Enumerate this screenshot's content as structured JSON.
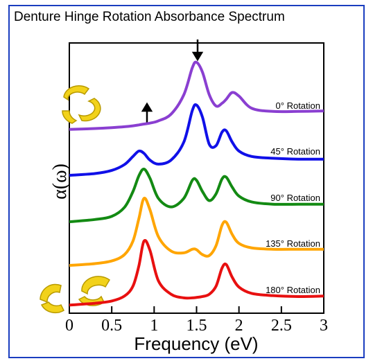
{
  "chart_data": {
    "type": "line",
    "title": "Denture Hinge Rotation Absorbance Spectrum",
    "x_label": "Frequency (eV)",
    "y_label": "α(ω)",
    "x": [
      0,
      0.3,
      0.5,
      0.65,
      0.75,
      0.82,
      0.88,
      0.95,
      1.05,
      1.2,
      1.35,
      1.45,
      1.5,
      1.57,
      1.65,
      1.73,
      1.8,
      1.85,
      1.92,
      2.0,
      2.15,
      2.4,
      2.7,
      3.0
    ],
    "xlim": [
      0,
      3
    ],
    "xticks": [
      0,
      0.5,
      1,
      1.5,
      2,
      2.5,
      3
    ],
    "ylim": [
      0,
      6
    ],
    "series": [
      {
        "name": "0° Rotation",
        "color": "#8a3fd1",
        "values": [
          4.08,
          4.1,
          4.12,
          4.14,
          4.16,
          4.18,
          4.2,
          4.22,
          4.27,
          4.42,
          4.85,
          5.45,
          5.57,
          5.35,
          4.85,
          4.6,
          4.66,
          4.75,
          4.9,
          4.82,
          4.55,
          4.48,
          4.48,
          4.49
        ]
      },
      {
        "name": "45° Rotation",
        "color": "#1010e8",
        "values": [
          3.06,
          3.1,
          3.17,
          3.3,
          3.48,
          3.6,
          3.55,
          3.4,
          3.31,
          3.4,
          3.8,
          4.5,
          4.62,
          4.35,
          3.75,
          3.72,
          4.02,
          4.05,
          3.8,
          3.6,
          3.48,
          3.44,
          3.42,
          3.42
        ]
      },
      {
        "name": "90° Rotation",
        "color": "#138a13",
        "values": [
          2.03,
          2.08,
          2.15,
          2.35,
          2.7,
          3.05,
          3.2,
          3.0,
          2.55,
          2.36,
          2.55,
          2.95,
          2.95,
          2.7,
          2.5,
          2.65,
          2.98,
          3.02,
          2.8,
          2.6,
          2.47,
          2.42,
          2.42,
          2.42
        ]
      },
      {
        "name": "135° Rotation",
        "color": "#ffa500",
        "values": [
          1.06,
          1.1,
          1.16,
          1.3,
          1.6,
          2.1,
          2.55,
          2.3,
          1.7,
          1.38,
          1.34,
          1.42,
          1.41,
          1.3,
          1.28,
          1.5,
          1.95,
          2.02,
          1.75,
          1.55,
          1.45,
          1.42,
          1.42,
          1.42
        ]
      },
      {
        "name": "180° Rotation",
        "color": "#e81010",
        "values": [
          0.18,
          0.22,
          0.27,
          0.38,
          0.6,
          1.05,
          1.6,
          1.4,
          0.72,
          0.42,
          0.34,
          0.34,
          0.35,
          0.37,
          0.42,
          0.6,
          1.0,
          1.08,
          0.8,
          0.58,
          0.44,
          0.39,
          0.37,
          0.38
        ]
      }
    ]
  }
}
